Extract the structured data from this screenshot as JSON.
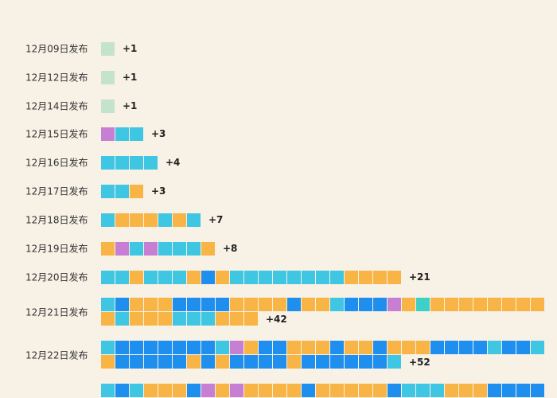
{
  "chart_data": {
    "type": "waffle",
    "title": "",
    "colors": {
      "cyan": "#3ec6e3",
      "orange": "#f8b545",
      "blue": "#1e8fee",
      "purple": "#c77fd3",
      "teal": "#3ecfc6",
      "light": "#c4e3cc"
    },
    "rows": [
      {
        "label": "12月09日发布",
        "count_label": "+1",
        "cells": [
          "light"
        ]
      },
      {
        "label": "12月12日发布",
        "count_label": "+1",
        "cells": [
          "light"
        ]
      },
      {
        "label": "12月14日发布",
        "count_label": "+1",
        "cells": [
          "light"
        ]
      },
      {
        "label": "12月15日发布",
        "count_label": "+3",
        "cells": [
          "purple",
          "cyan",
          "cyan"
        ]
      },
      {
        "label": "12月16日发布",
        "count_label": "+4",
        "cells": [
          "cyan",
          "cyan",
          "cyan",
          "cyan"
        ]
      },
      {
        "label": "12月17日发布",
        "count_label": "+3",
        "cells": [
          "cyan",
          "cyan",
          "orange"
        ]
      },
      {
        "label": "12月18日发布",
        "count_label": "+7",
        "cells": [
          "cyan",
          "orange",
          "orange",
          "orange",
          "cyan",
          "orange",
          "cyan"
        ]
      },
      {
        "label": "12月19日发布",
        "count_label": "+8",
        "cells": [
          "orange",
          "purple",
          "cyan",
          "purple",
          "cyan",
          "cyan",
          "cyan",
          "orange"
        ]
      },
      {
        "label": "12月20日发布",
        "count_label": "+21",
        "cells": [
          "cyan",
          "cyan",
          "orange",
          "cyan",
          "cyan",
          "cyan",
          "orange",
          "blue",
          "orange",
          "cyan",
          "cyan",
          "cyan",
          "cyan",
          "cyan",
          "cyan",
          "cyan",
          "cyan",
          "orange",
          "orange",
          "orange",
          "orange"
        ]
      },
      {
        "label": "12月21日发布",
        "count_label": "+42",
        "cells": [
          "cyan",
          "blue",
          "orange",
          "orange",
          "orange",
          "blue",
          "blue",
          "blue",
          "blue",
          "orange",
          "orange",
          "orange",
          "orange",
          "blue",
          "orange",
          "orange",
          "cyan",
          "blue",
          "blue",
          "blue",
          "purple",
          "orange",
          "teal",
          "orange",
          "orange",
          "orange",
          "orange",
          "orange",
          "orange",
          "orange",
          "orange",
          "orange",
          "cyan",
          "orange",
          "orange",
          "orange",
          "cyan",
          "cyan",
          "cyan",
          "orange",
          "orange",
          "orange"
        ]
      },
      {
        "label": "12月22日发布",
        "count_label": "+52",
        "cells": [
          "cyan",
          "blue",
          "blue",
          "blue",
          "blue",
          "blue",
          "blue",
          "blue",
          "cyan",
          "purple",
          "orange",
          "blue",
          "blue",
          "orange",
          "orange",
          "orange",
          "blue",
          "orange",
          "orange",
          "blue",
          "orange",
          "orange",
          "orange",
          "blue",
          "blue",
          "blue",
          "blue",
          "cyan",
          "blue",
          "blue",
          "cyan",
          "orange",
          "blue",
          "blue",
          "blue",
          "blue",
          "blue",
          "orange",
          "blue",
          "orange",
          "blue",
          "blue",
          "blue",
          "blue",
          "orange",
          "blue",
          "blue",
          "blue",
          "blue",
          "blue",
          "blue",
          "cyan"
        ]
      },
      {
        "label": "",
        "count_label": "",
        "cells": [
          "cyan",
          "blue",
          "cyan",
          "orange",
          "orange",
          "orange",
          "blue",
          "purple",
          "orange",
          "purple",
          "orange",
          "orange",
          "orange",
          "orange",
          "blue",
          "orange",
          "orange",
          "orange",
          "orange",
          "orange",
          "blue",
          "cyan",
          "cyan",
          "cyan",
          "orange",
          "orange",
          "orange",
          "blue",
          "blue",
          "blue",
          "blue"
        ]
      }
    ]
  }
}
